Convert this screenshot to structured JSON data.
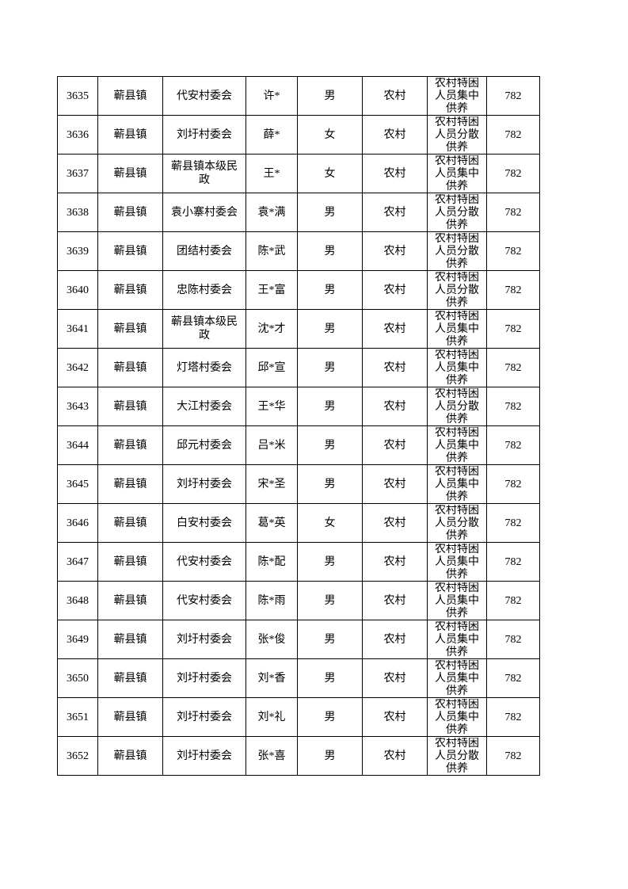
{
  "table": {
    "rows": [
      [
        "3635",
        "蕲县镇",
        "代安村委会",
        "许*",
        "男",
        "农村",
        "农村特困人员集中供养",
        "782"
      ],
      [
        "3636",
        "蕲县镇",
        "刘圩村委会",
        "薛*",
        "女",
        "农村",
        "农村特困人员分散供养",
        "782"
      ],
      [
        "3637",
        "蕲县镇",
        "蕲县镇本级民政",
        "王*",
        "女",
        "农村",
        "农村特困人员集中供养",
        "782"
      ],
      [
        "3638",
        "蕲县镇",
        "袁小寨村委会",
        "袁*满",
        "男",
        "农村",
        "农村特困人员分散供养",
        "782"
      ],
      [
        "3639",
        "蕲县镇",
        "团结村委会",
        "陈*武",
        "男",
        "农村",
        "农村特困人员分散供养",
        "782"
      ],
      [
        "3640",
        "蕲县镇",
        "忠陈村委会",
        "王*富",
        "男",
        "农村",
        "农村特困人员分散供养",
        "782"
      ],
      [
        "3641",
        "蕲县镇",
        "蕲县镇本级民政",
        "沈*才",
        "男",
        "农村",
        "农村特困人员集中供养",
        "782"
      ],
      [
        "3642",
        "蕲县镇",
        "灯塔村委会",
        "邱*宣",
        "男",
        "农村",
        "农村特困人员集中供养",
        "782"
      ],
      [
        "3643",
        "蕲县镇",
        "大江村委会",
        "王*华",
        "男",
        "农村",
        "农村特困人员分散供养",
        "782"
      ],
      [
        "3644",
        "蕲县镇",
        "邱元村委会",
        "吕*米",
        "男",
        "农村",
        "农村特困人员集中供养",
        "782"
      ],
      [
        "3645",
        "蕲县镇",
        "刘圩村委会",
        "宋*圣",
        "男",
        "农村",
        "农村特困人员集中供养",
        "782"
      ],
      [
        "3646",
        "蕲县镇",
        "白安村委会",
        "葛*英",
        "女",
        "农村",
        "农村特困人员分散供养",
        "782"
      ],
      [
        "3647",
        "蕲县镇",
        "代安村委会",
        "陈*配",
        "男",
        "农村",
        "农村特困人员集中供养",
        "782"
      ],
      [
        "3648",
        "蕲县镇",
        "代安村委会",
        "陈*雨",
        "男",
        "农村",
        "农村特困人员集中供养",
        "782"
      ],
      [
        "3649",
        "蕲县镇",
        "刘圩村委会",
        "张*俊",
        "男",
        "农村",
        "农村特困人员集中供养",
        "782"
      ],
      [
        "3650",
        "蕲县镇",
        "刘圩村委会",
        "刘*香",
        "男",
        "农村",
        "农村特困人员集中供养",
        "782"
      ],
      [
        "3651",
        "蕲县镇",
        "刘圩村委会",
        "刘*礼",
        "男",
        "农村",
        "农村特困人员集中供养",
        "782"
      ],
      [
        "3652",
        "蕲县镇",
        "刘圩村委会",
        "张*喜",
        "男",
        "农村",
        "农村特困人员分散供养",
        "782"
      ]
    ]
  }
}
